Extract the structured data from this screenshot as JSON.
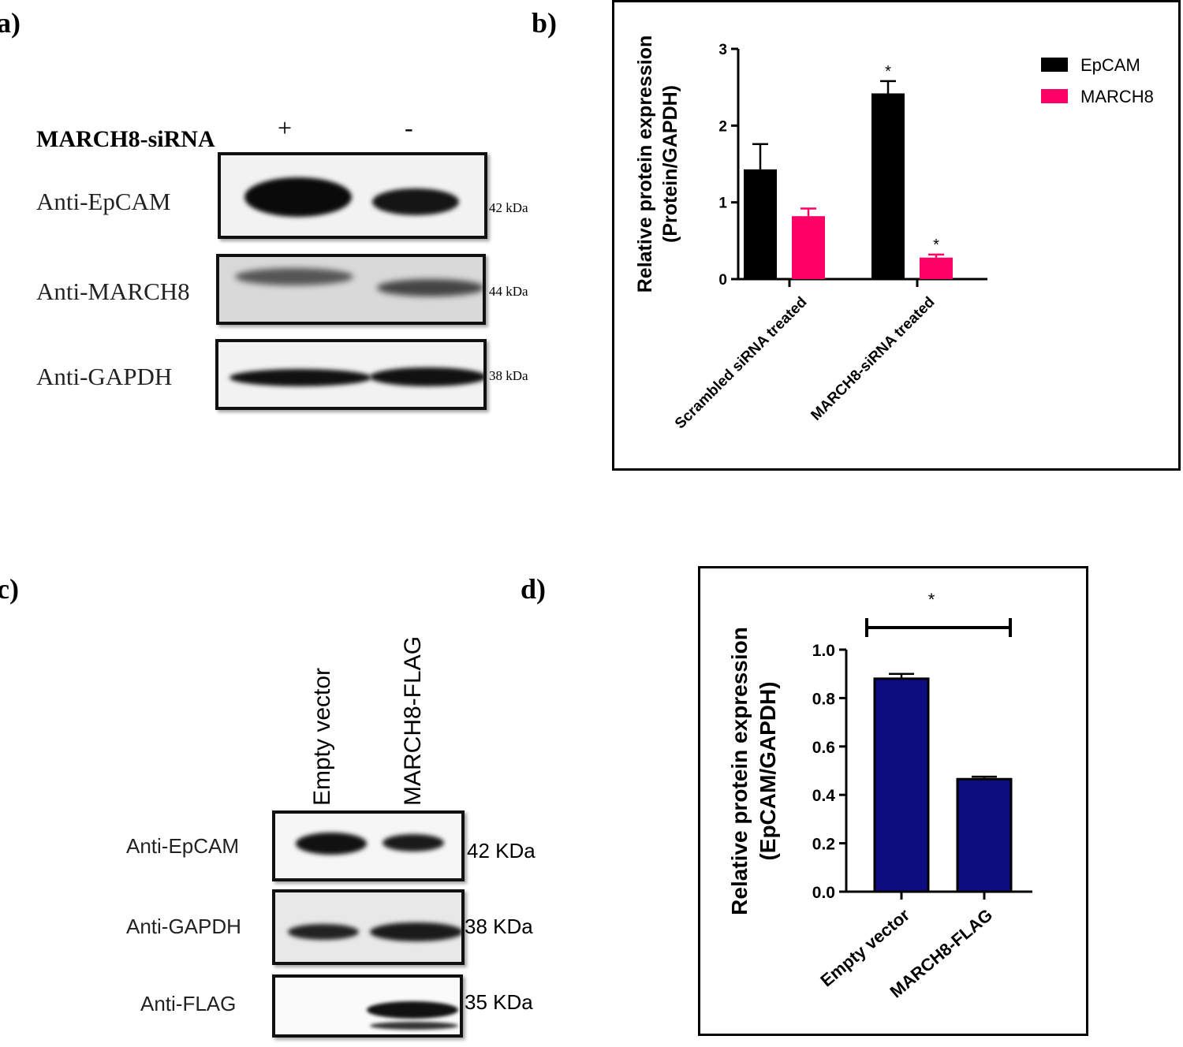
{
  "panels": {
    "a": {
      "label": "a)",
      "treatment_label": "MARCH8-siRNA",
      "lanes": [
        "+",
        "-"
      ],
      "rows": [
        {
          "antibody": "Anti-EpCAM",
          "mw": "42 kDa"
        },
        {
          "antibody": "Anti-MARCH8",
          "mw": "44 kDa"
        },
        {
          "antibody": "Anti-GAPDH",
          "mw": "38 kDa"
        }
      ]
    },
    "b": {
      "label": "b)"
    },
    "c": {
      "label": "c)",
      "lanes": [
        "Empty vector",
        "MARCH8-FLAG"
      ],
      "rows": [
        {
          "antibody": "Anti-EpCAM",
          "mw": "42 KDa"
        },
        {
          "antibody": "Anti-GAPDH",
          "mw": "38 KDa"
        },
        {
          "antibody": "Anti-FLAG",
          "mw": "35 KDa"
        }
      ]
    },
    "d": {
      "label": "d)"
    }
  },
  "chart_data": [
    {
      "type": "bar",
      "panel": "b",
      "categories": [
        "Scrambled siRNA treated",
        "MARCH8-siRNA treated"
      ],
      "series": [
        {
          "name": "EpCAM",
          "color": "#000000",
          "values": [
            1.43,
            2.42
          ],
          "errors": [
            0.33,
            0.16
          ],
          "sig": [
            "",
            "*"
          ]
        },
        {
          "name": "MARCH8",
          "color": "#ff0066",
          "values": [
            0.82,
            0.28
          ],
          "errors": [
            0.1,
            0.04
          ],
          "sig": [
            "",
            "*"
          ]
        }
      ],
      "ylabel_line1": "Relative protein expression",
      "ylabel_line2": "(Protein/GAPDH)",
      "ylim": [
        0,
        3
      ],
      "yticks": [
        "0",
        "1",
        "2",
        "3"
      ],
      "legend_position": "top-right"
    },
    {
      "type": "bar",
      "panel": "d",
      "categories": [
        "Empty vector",
        "MARCH8-FLAG"
      ],
      "values": [
        0.88,
        0.465
      ],
      "errors": [
        0.02,
        0.01
      ],
      "bar_color": "#0d0d80",
      "ylabel_line1": "Relative protein expression",
      "ylabel_line2": "(EpCAM/GAPDH)",
      "ylim": [
        0,
        1.0
      ],
      "yticks": [
        "0.0",
        "0.2",
        "0.4",
        "0.6",
        "0.8",
        "1.0"
      ],
      "sig_label": "*"
    }
  ]
}
